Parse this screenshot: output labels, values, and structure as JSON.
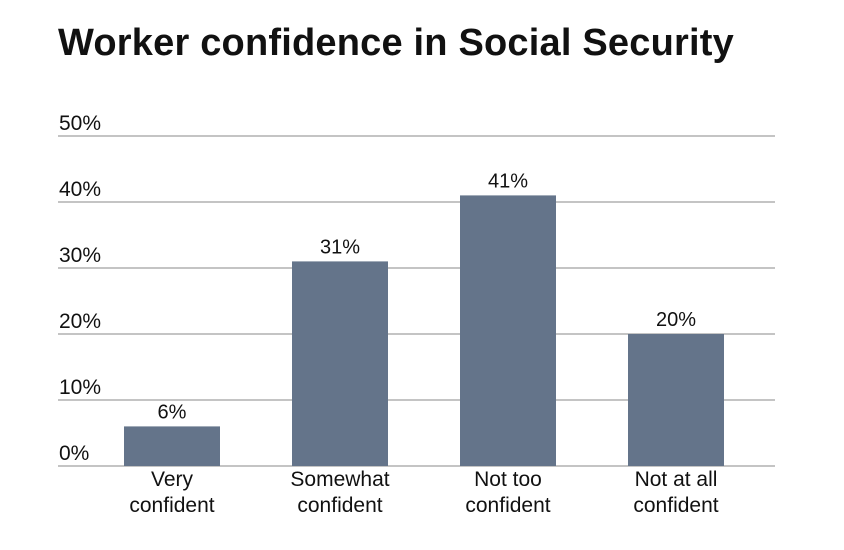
{
  "chart_data": {
    "type": "bar",
    "title": "Worker confidence in Social Security",
    "categories": [
      [
        "Very",
        "confident"
      ],
      [
        "Somewhat",
        "confident"
      ],
      [
        "Not too",
        "confident"
      ],
      [
        "Not at all",
        "confident"
      ]
    ],
    "values": [
      6,
      31,
      41,
      20
    ],
    "data_labels": [
      "6%",
      "31%",
      "41%",
      "20%"
    ],
    "yticks": [
      0,
      10,
      20,
      30,
      40,
      50
    ],
    "ytick_labels": [
      "0%",
      "10%",
      "20%",
      "30%",
      "40%",
      "50%"
    ],
    "ylim": [
      0,
      50
    ],
    "xlabel": "",
    "ylabel": "",
    "grid": true,
    "bar_color": "#64748a",
    "grid_color": "#8a8a8a"
  }
}
